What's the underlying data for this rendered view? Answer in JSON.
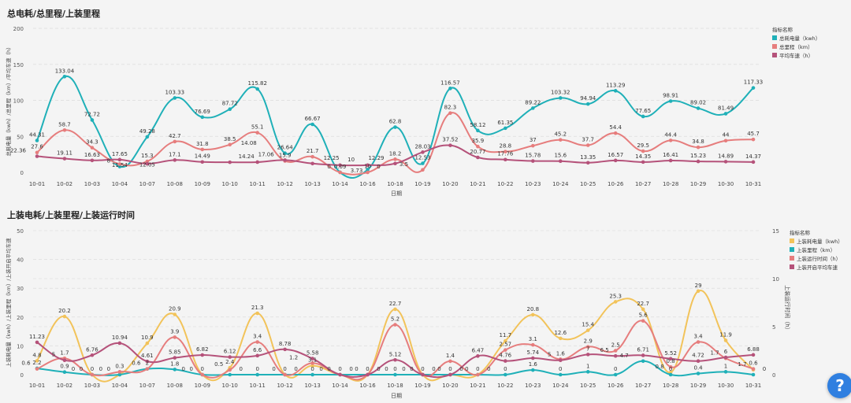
{
  "help_label": "?",
  "chart_data": [
    {
      "type": "line",
      "title": "总电耗/总里程/上装里程",
      "xlabel": "日期",
      "ylabel": "总耗电量（kwh）/总里程（km）/平均车速（h）",
      "ylim": [
        0,
        200
      ],
      "yticks": [
        0,
        50,
        100,
        150,
        200
      ],
      "grid": true,
      "legend_position": "right",
      "legend_title": "指标名称",
      "categories": [
        "10-01",
        "10-02",
        "10-03",
        "10-04",
        "10-07",
        "10-08",
        "10-09",
        "10-10",
        "10-11",
        "10-12",
        "10-13",
        "10-14",
        "10-16",
        "10-18",
        "10-19",
        "10-20",
        "10-21",
        "10-22",
        "10-23",
        "10-24",
        "10-25",
        "10-26",
        "10-27",
        "10-28",
        "10-29",
        "10-30",
        "10-31"
      ],
      "series": [
        {
          "name": "总耗电量（kwh）",
          "color": "#1fb0b8",
          "values": [
            44.31,
            133.04,
            72.72,
            8,
            49.28,
            103.33,
            76.69,
            87.72,
            115.82,
            26.64,
            66.67,
            0.09,
            3.73,
            62.8,
            12.53,
            116.57,
            58.12,
            61.35,
            89.22,
            103.32,
            94.94,
            113.29,
            77.65,
            98.91,
            89.02,
            81.49,
            117.33
          ]
        },
        {
          "name": "总里程（km）",
          "color": "#e67d7d",
          "values": [
            27.6,
            58.7,
            34.3,
            11.54,
            15.3,
            42.7,
            31.8,
            38.5,
            55.1,
            15.9,
            21.7,
            0,
            0,
            18.2,
            3.5,
            82.3,
            35.9,
            28.8,
            37,
            45.2,
            37.7,
            54.4,
            29.5,
            44.4,
            34.8,
            44,
            45.7
          ]
        },
        {
          "name": "平均车速（h）",
          "color": "#b5527a",
          "values": [
            22.36,
            19.11,
            16.63,
            17.65,
            12.05,
            17.1,
            14.49,
            14.08,
            14.24,
            17.06,
            12.25,
            10,
            10,
            12.29,
            28.03,
            37.52,
            20.77,
            17.76,
            15.78,
            15.6,
            13.35,
            16.57,
            14.35,
            16.41,
            15.23,
            14.89,
            14.37
          ]
        }
      ]
    },
    {
      "type": "line",
      "title": "上装电耗/上装里程/上装运行时间",
      "xlabel": "日期",
      "ylabel": "上装耗电量（kwh）/上装里程（km）/上装开启平均车速",
      "ylabel_right": "上装运行时间（h）",
      "ylim": [
        0,
        50
      ],
      "yticks": [
        0,
        10,
        20,
        30,
        40,
        50
      ],
      "ylim_right": [
        0,
        15
      ],
      "yticks_right": [
        0,
        5,
        10,
        15
      ],
      "grid": true,
      "legend_position": "right",
      "legend_title": "指标名称",
      "categories": [
        "10-01",
        "10-02",
        "10-03",
        "10-04",
        "10-07",
        "10-08",
        "10-09",
        "10-10",
        "10-11",
        "10-12",
        "10-13",
        "10-14",
        "10-16",
        "10-18",
        "10-19",
        "10-20",
        "10-21",
        "10-22",
        "10-23",
        "10-24",
        "10-25",
        "10-26",
        "10-27",
        "10-28",
        "10-29",
        "10-30",
        "10-31"
      ],
      "series": [
        {
          "name": "上装耗电量（kwh）",
          "color": "#f2c35a",
          "axis": "left",
          "values": [
            4.8,
            20.2,
            0,
            0,
            10.9,
            20.9,
            0,
            2.4,
            21.3,
            0,
            3.1,
            0,
            0,
            22.7,
            0,
            0,
            0,
            11.7,
            20.8,
            12.6,
            15.4,
            25.3,
            22.7,
            0.8,
            29,
            11.9,
            1.7
          ]
        },
        {
          "name": "上装里程（km）",
          "color": "#1fb0b8",
          "axis": "left",
          "values": [
            2.2,
            0.9,
            0,
            0,
            2,
            1.8,
            0,
            0,
            0,
            0,
            0,
            0,
            0,
            0,
            0,
            0,
            0,
            0,
            1.6,
            0,
            1,
            0,
            4.7,
            0,
            0.4,
            1,
            0
          ]
        },
        {
          "name": "上装运行时间（h）",
          "color": "#e67d7d",
          "axis": "right",
          "values": [
            0.6,
            1.7,
            0,
            0.3,
            0.6,
            3.9,
            0,
            0.5,
            3.4,
            0,
            1.2,
            0,
            0,
            5.2,
            0,
            1.4,
            0,
            2.57,
            3.1,
            1.6,
            2.9,
            2.5,
            5.6,
            0.8,
            3.4,
            1.7,
            0.6
          ]
        },
        {
          "name": "上装开启平均车速",
          "color": "#b5527a",
          "axis": "left",
          "values": [
            11.23,
            5,
            6.76,
            10.94,
            4.61,
            5.85,
            6.82,
            6.12,
            6.6,
            8.78,
            5.58,
            0,
            0,
            5.12,
            0,
            0,
            6.47,
            4.76,
            5.74,
            5,
            7,
            6.5,
            6.71,
            5.52,
            4.72,
            6,
            6.88
          ]
        }
      ]
    }
  ]
}
